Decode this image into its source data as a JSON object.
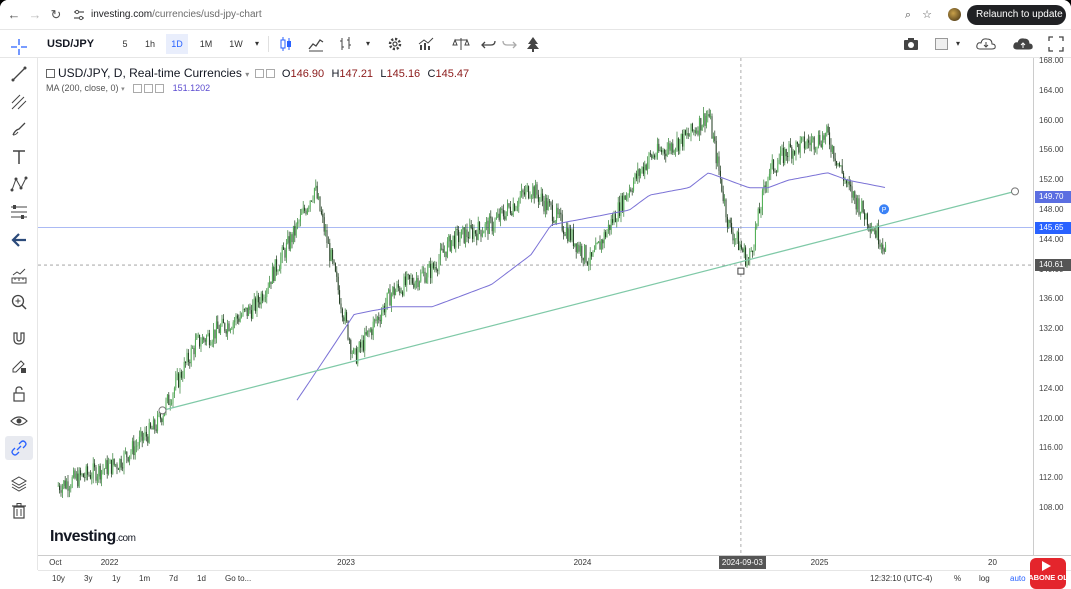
{
  "browser": {
    "url_host": "investing.com",
    "url_path": "/currencies/usd-jpy-chart",
    "relaunch_label": "Relaunch to update",
    "relaunch_menu": "⋮"
  },
  "toolbar": {
    "symbol": "USD/JPY",
    "timeframes": [
      "5",
      "1h",
      "1D",
      "1M",
      "1W"
    ],
    "active_timeframe": "1D"
  },
  "legend": {
    "title": "USD/JPY, D, Real-time Currencies",
    "open_label": "O",
    "open": "146.90",
    "high_label": "H",
    "high": "147.21",
    "low_label": "L",
    "low": "145.16",
    "close_label": "C",
    "close": "145.47",
    "ma_label": "MA (200, close, 0)",
    "ma_value": "151.1202"
  },
  "price_axis": {
    "ticks": [
      "168.00",
      "164.00",
      "160.00",
      "156.00",
      "152.00",
      "148.00",
      "144.00",
      "140.00",
      "136.00",
      "132.00",
      "128.00",
      "124.00",
      "120.00",
      "116.00",
      "112.00",
      "108.00"
    ],
    "tags": [
      {
        "label": "149.70",
        "color": "#5b6ee1"
      },
      {
        "label": "145.65",
        "color": "#2962ff"
      },
      {
        "label": "140.61",
        "color": "#555555"
      }
    ]
  },
  "time_axis": {
    "ticks": [
      "Oct",
      "2022",
      "2023",
      "2024",
      "2025",
      "20"
    ],
    "crosshair_date": "2024-09-03"
  },
  "bottom_bar": {
    "ranges": [
      "10y",
      "3y",
      "1y",
      "1m",
      "7d",
      "1d"
    ],
    "goto": "Go to...",
    "clock": "12:32:10 (UTC-4)",
    "percent": "%",
    "log": "log",
    "auto": "auto"
  },
  "logo": {
    "brand": "Investing",
    "suffix": ".com"
  },
  "overlay": {
    "badge": "ABONE OL"
  },
  "chart_data": {
    "type": "line",
    "title": "USD/JPY, D, Real-time Currencies",
    "ylim": [
      106,
      168
    ],
    "x": [
      "2021-10",
      "2022-01",
      "2022-03",
      "2022-05",
      "2022-08",
      "2022-10",
      "2022-11",
      "2023-01",
      "2023-03",
      "2023-05",
      "2023-06",
      "2023-08",
      "2023-10",
      "2023-11",
      "2024-01",
      "2024-03",
      "2024-04",
      "2024-06",
      "2024-07",
      "2024-08",
      "2024-09",
      "2024-10",
      "2024-11",
      "2025-01",
      "2025-02",
      "2025-04",
      "2025-04-15"
    ],
    "series": [
      {
        "name": "USD/JPY",
        "values": [
          111,
          114,
          119,
          130,
          135,
          145,
          151,
          128,
          137,
          140,
          144,
          146,
          151,
          148,
          141,
          151,
          155,
          158,
          161,
          146,
          141,
          153,
          156,
          158,
          151,
          143,
          145.5
        ]
      },
      {
        "name": "MA (200, close, 0)",
        "values": [
          null,
          null,
          null,
          null,
          null,
          122,
          126,
          134,
          135,
          135,
          136,
          138,
          142,
          146,
          147,
          148,
          150,
          151,
          153,
          152,
          151,
          151,
          152,
          153,
          152,
          151,
          149.7
        ]
      }
    ],
    "annotations": {
      "trend_line": "2022-03 ~121 to 2025 ~150.5",
      "horizontal_line": 145.65,
      "crosshair_price": 140.61,
      "crosshair_date": "2024-09-03"
    }
  }
}
